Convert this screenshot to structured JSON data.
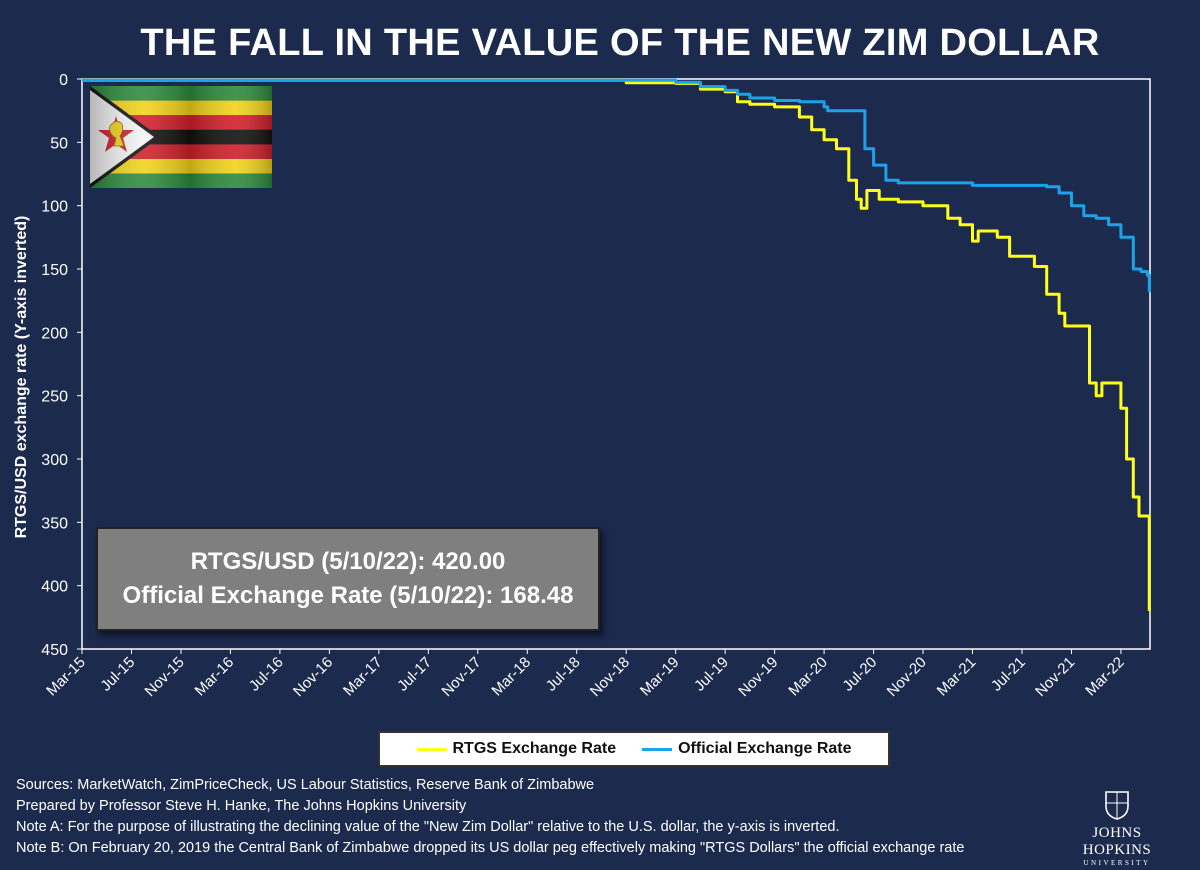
{
  "title": "THE FALL IN THE VALUE OF THE NEW ZIM DOLLAR",
  "info_box": {
    "line1": "RTGS/USD (5/10/22): 420.00",
    "line2": "Official Exchange Rate (5/10/22): 168.48"
  },
  "footnotes": [
    "Sources: MarketWatch, ZimPriceCheck, US Labour Statistics, Reserve Bank of Zimbabwe",
    "Prepared by Professor Steve H. Hanke, The Johns Hopkins University",
    "Note A: For the purpose of illustrating the declining value of the \"New Zim Dollar\" relative to the U.S. dollar, the y-axis is inverted.",
    "Note B: On February 20, 2019 the Central Bank of Zimbabwe dropped its US dollar peg effectively making \"RTGS Dollars\" the official exchange rate"
  ],
  "logo": {
    "name": "JOHNS HOPKINS",
    "sub": "UNIVERSITY"
  },
  "colors": {
    "background": "#1c2a4e",
    "rtgs": "#ffff1a",
    "official": "#1aa3e8",
    "info_box": "#7f7f7f"
  },
  "chart_data": {
    "type": "line",
    "ylabel": "RTGS/USD exchange rate (Y-axis inverted)",
    "xlabel": "",
    "y_inverted": true,
    "ylim": [
      0,
      450
    ],
    "y_ticks": [
      0,
      50,
      100,
      150,
      200,
      250,
      300,
      350,
      400,
      450
    ],
    "xlim": [
      "2015-03",
      "2022-05"
    ],
    "x_ticks": [
      "Mar-15",
      "Jul-15",
      "Nov-15",
      "Mar-16",
      "Jul-16",
      "Nov-16",
      "Mar-17",
      "Jul-17",
      "Nov-17",
      "Mar-18",
      "Jul-18",
      "Nov-18",
      "Mar-19",
      "Jul-19",
      "Nov-19",
      "Mar-20",
      "Jul-20",
      "Nov-20",
      "Mar-21",
      "Jul-21",
      "Nov-21",
      "Mar-22"
    ],
    "legend_position": "bottom",
    "series": [
      {
        "name": "RTGS Exchange Rate",
        "color": "#ffff1a",
        "points": [
          [
            "2015-03-01",
            1
          ],
          [
            "2018-10-01",
            1
          ],
          [
            "2018-11-01",
            3
          ],
          [
            "2019-01-01",
            3
          ],
          [
            "2019-03-01",
            3.5
          ],
          [
            "2019-05-01",
            8
          ],
          [
            "2019-07-01",
            10
          ],
          [
            "2019-08-01",
            18
          ],
          [
            "2019-09-01",
            20
          ],
          [
            "2019-11-01",
            22
          ],
          [
            "2020-01-01",
            30
          ],
          [
            "2020-02-01",
            40
          ],
          [
            "2020-03-01",
            48
          ],
          [
            "2020-04-01",
            55
          ],
          [
            "2020-05-01",
            80
          ],
          [
            "2020-05-20",
            95
          ],
          [
            "2020-06-01",
            102
          ],
          [
            "2020-06-15",
            88
          ],
          [
            "2020-07-15",
            95
          ],
          [
            "2020-09-01",
            97
          ],
          [
            "2020-11-01",
            100
          ],
          [
            "2021-01-01",
            110
          ],
          [
            "2021-02-01",
            115
          ],
          [
            "2021-03-01",
            128
          ],
          [
            "2021-03-15",
            120
          ],
          [
            "2021-05-01",
            125
          ],
          [
            "2021-06-01",
            140
          ],
          [
            "2021-08-01",
            148
          ],
          [
            "2021-09-01",
            170
          ],
          [
            "2021-10-01",
            185
          ],
          [
            "2021-10-15",
            195
          ],
          [
            "2021-12-01",
            195
          ],
          [
            "2021-12-15",
            240
          ],
          [
            "2022-01-01",
            250
          ],
          [
            "2022-01-15",
            240
          ],
          [
            "2022-02-15",
            240
          ],
          [
            "2022-03-01",
            260
          ],
          [
            "2022-03-15",
            300
          ],
          [
            "2022-04-01",
            330
          ],
          [
            "2022-04-15",
            345
          ],
          [
            "2022-04-25",
            345
          ],
          [
            "2022-05-10",
            420
          ]
        ]
      },
      {
        "name": "Official Exchange Rate",
        "color": "#1aa3e8",
        "points": [
          [
            "2015-03-01",
            1
          ],
          [
            "2019-01-01",
            1
          ],
          [
            "2019-03-01",
            2.5
          ],
          [
            "2019-05-01",
            6
          ],
          [
            "2019-07-01",
            9
          ],
          [
            "2019-08-01",
            12
          ],
          [
            "2019-09-01",
            15
          ],
          [
            "2019-11-01",
            17
          ],
          [
            "2020-01-01",
            18
          ],
          [
            "2020-03-01",
            22
          ],
          [
            "2020-03-10",
            25
          ],
          [
            "2020-06-01",
            25
          ],
          [
            "2020-06-10",
            55
          ],
          [
            "2020-07-01",
            68
          ],
          [
            "2020-08-01",
            80
          ],
          [
            "2020-09-01",
            82
          ],
          [
            "2021-03-01",
            84
          ],
          [
            "2021-09-01",
            85
          ],
          [
            "2021-10-01",
            90
          ],
          [
            "2021-11-01",
            100
          ],
          [
            "2021-12-01",
            108
          ],
          [
            "2022-01-01",
            110
          ],
          [
            "2022-02-01",
            115
          ],
          [
            "2022-03-01",
            125
          ],
          [
            "2022-04-01",
            150
          ],
          [
            "2022-04-20",
            152
          ],
          [
            "2022-05-05",
            155
          ],
          [
            "2022-05-10",
            168.48
          ]
        ]
      }
    ]
  }
}
